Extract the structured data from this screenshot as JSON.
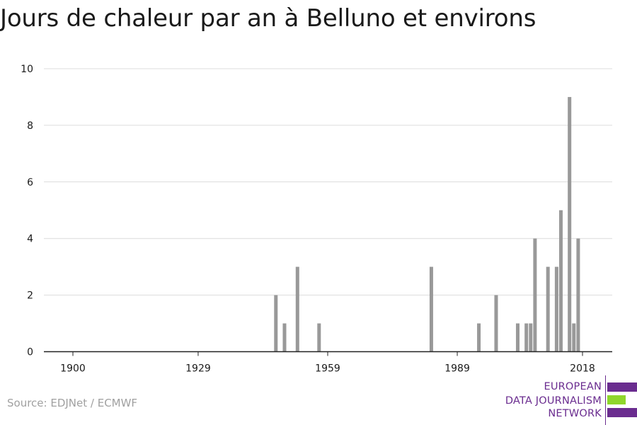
{
  "title": "Jours de chaleur par an à Belluno et environs",
  "source": "Source: EDJNet / ECMWF",
  "logo": {
    "lines": [
      "EUROPEAN",
      "DATA JOURNALISM",
      "NETWORK"
    ],
    "colors": {
      "purple": "#6a2c8f",
      "green": "#8fd62b"
    }
  },
  "chart_data": {
    "type": "bar",
    "title": "Jours de chaleur par an à Belluno et environs",
    "xlabel": "",
    "ylabel": "",
    "xlim": [
      1899,
      2022
    ],
    "ylim": [
      0,
      10
    ],
    "x_ticks": [
      1900,
      1929,
      1959,
      1989,
      2018
    ],
    "y_ticks": [
      0,
      2,
      4,
      6,
      8,
      10
    ],
    "grid": true,
    "bar_color": "#999999",
    "x": [
      1947,
      1949,
      1952,
      1957,
      1983,
      1994,
      1998,
      2003,
      2005,
      2006,
      2007,
      2010,
      2012,
      2013,
      2015,
      2016,
      2017
    ],
    "values": [
      2,
      1,
      3,
      1,
      3,
      1,
      2,
      1,
      1,
      1,
      4,
      3,
      3,
      5,
      9,
      1,
      4
    ]
  }
}
